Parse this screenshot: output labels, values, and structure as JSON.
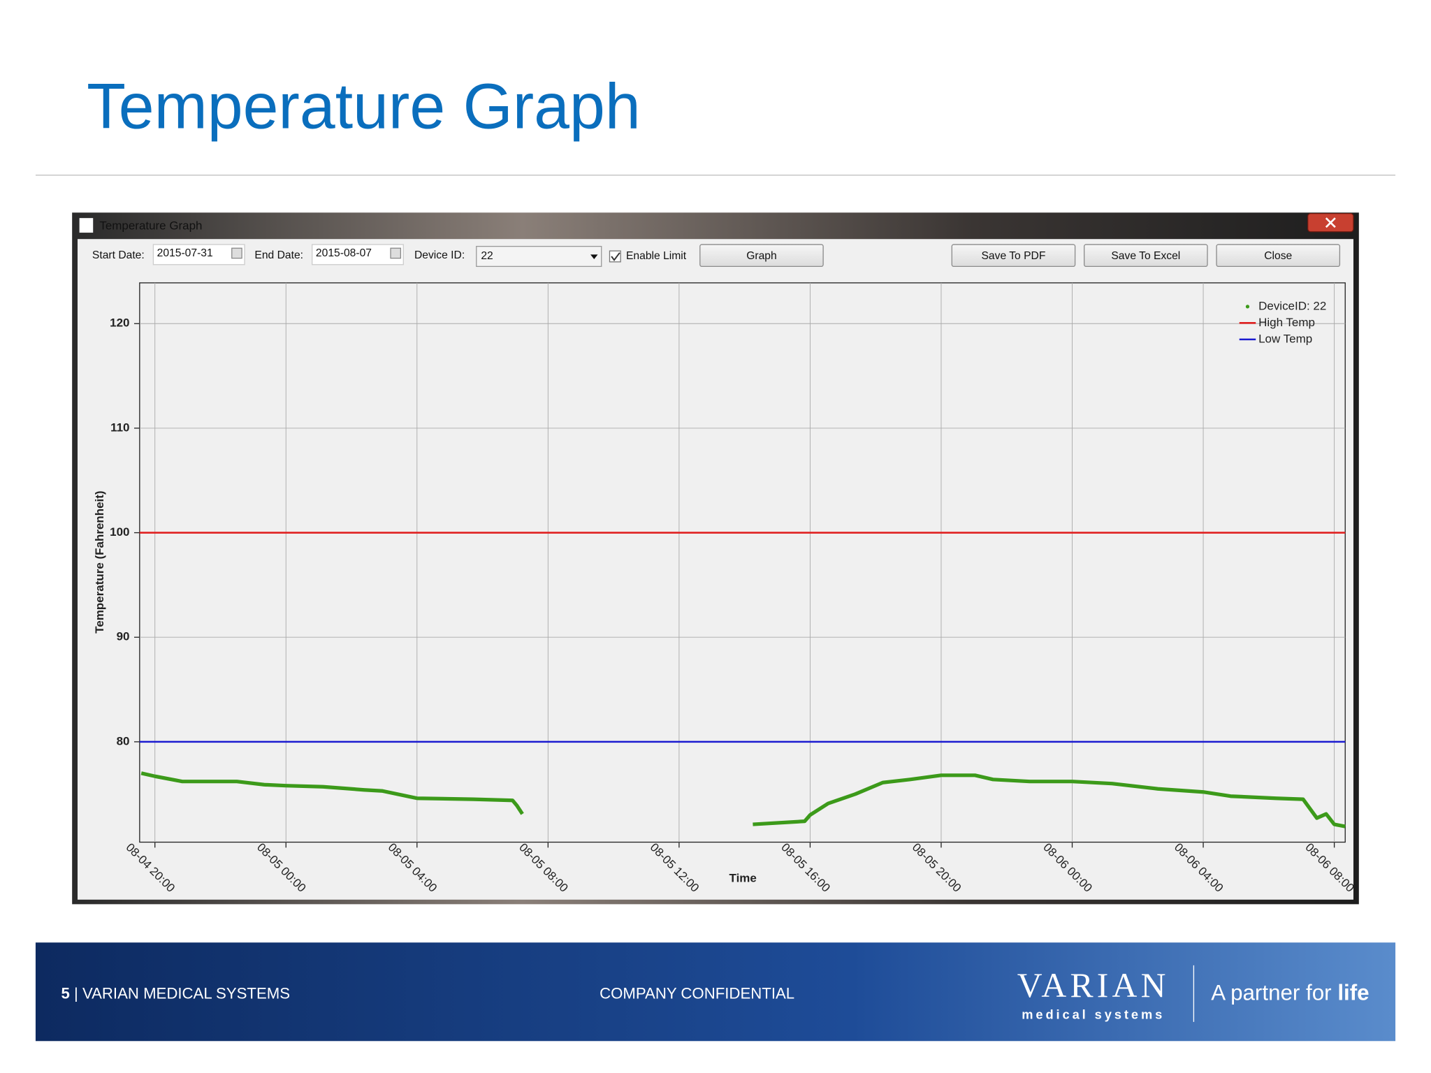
{
  "slide": {
    "title": "Temperature Graph",
    "page_number": "5",
    "footer_left": "| VARIAN MEDICAL SYSTEMS",
    "footer_center": "COMPANY CONFIDENTIAL",
    "logo": "VARIAN",
    "logo_sub": "medical systems",
    "tagline": "A partner for",
    "tagline_bold": "life"
  },
  "window": {
    "title": "Temperature Graph",
    "start_date_label": "Start Date:",
    "start_date": "2015-07-31",
    "end_date_label": "End Date:",
    "end_date": "2015-08-07",
    "device_label": "Device ID:",
    "device": "22",
    "enable_limit": "Enable Limit",
    "buttons": [
      "Graph",
      "Save To PDF",
      "Save To Excel",
      "Close"
    ]
  },
  "chart_data": {
    "type": "line",
    "x_label": "Time",
    "y_label": "Temperature (Fahrenheit)",
    "x": [
      "08-04 19:35",
      "08-04 20:00",
      "08-04 20:50",
      "08-04 22:30",
      "08-04 23:20",
      "08-05 00:00",
      "08-05 01:08",
      "08-05 02:23",
      "08-05 02:57",
      "08-05 04:00",
      "08-05 05:43",
      "08-05 06:55",
      "08-05 07:03",
      "08-05 07:13",
      "08-05 10:00",
      "08-05 14:15",
      "08-05 15:50",
      "08-05 16:00",
      "08-05 16:33",
      "08-05 17:23",
      "08-05 18:13",
      "08-05 19:03",
      "08-05 20:00",
      "08-05 21:02",
      "08-05 21:35",
      "08-05 22:42",
      "08-06 00:00",
      "08-06 01:13",
      "08-06 02:37",
      "08-06 04:00",
      "08-06 04:50",
      "08-06 06:13",
      "08-06 07:03",
      "08-06 07:28",
      "08-06 07:45",
      "08-06 08:00",
      "08-06 08:20"
    ],
    "series": [
      {
        "name": "DeviceID: 22",
        "color": "#3c9a1a",
        "values": [
          77.0,
          76.7,
          76.2,
          76.2,
          75.9,
          75.8,
          75.7,
          75.4,
          75.3,
          74.6,
          74.5,
          74.4,
          73.9,
          73.1,
          null,
          72.1,
          72.4,
          73.0,
          74.1,
          75.0,
          76.1,
          76.4,
          76.8,
          76.8,
          76.4,
          76.2,
          76.2,
          76.0,
          75.5,
          75.2,
          74.8,
          74.6,
          74.5,
          72.7,
          73.1,
          72.1,
          71.9
        ]
      }
    ],
    "limits": [
      {
        "name": "High Temp",
        "color": "#e02020",
        "value": 100
      },
      {
        "name": "Low Temp",
        "color": "#1a1ad0",
        "value": 80
      }
    ],
    "xlim": [
      "08-04 19:32",
      "08-06 08:20"
    ],
    "xticks": [
      "08-04 20:00",
      "08-05 00:00",
      "08-05 04:00",
      "08-05 08:00",
      "08-05 12:00",
      "08-05 16:00",
      "08-05 20:00",
      "08-06 00:00",
      "08-06 04:00",
      "08-06 08:00"
    ],
    "ylim": [
      70.4,
      123.9
    ],
    "yticks": [
      80,
      90,
      100,
      110,
      120
    ],
    "grid": true,
    "legend": "top-right"
  }
}
